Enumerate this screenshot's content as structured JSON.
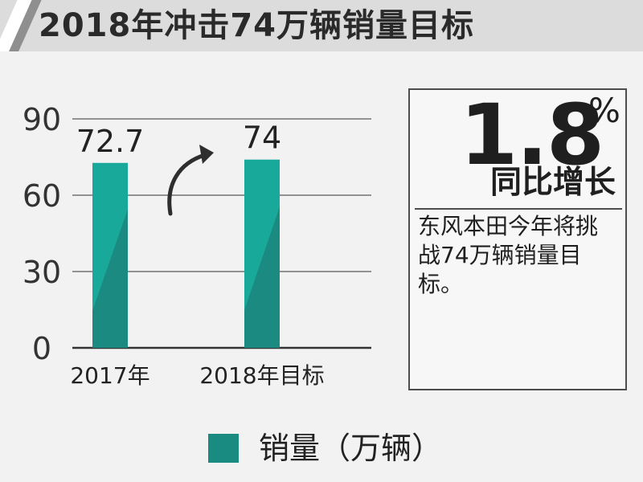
{
  "header": {
    "title": "2018年冲击74万辆销量目标"
  },
  "chart_data": {
    "type": "bar",
    "categories": [
      "2017年",
      "2018年目标"
    ],
    "values": [
      72.7,
      74
    ],
    "data_labels": [
      "72.7",
      "74"
    ],
    "yticks": [
      "0",
      "30",
      "60",
      "90"
    ],
    "ylim": [
      0,
      90
    ],
    "grid": true,
    "legend": {
      "placement": "bottom",
      "label": "销量（万辆）"
    },
    "colors": {
      "bar_main": "#19a99a",
      "bar_shadow": "#1b8a80",
      "axis": "#333333",
      "grid": "#333333",
      "arrow": "#2e2e2e"
    }
  },
  "summary": {
    "growth_value": "1.8",
    "growth_unit": "%",
    "growth_label": "同比增长",
    "description": "东风本田今年将挑战74万辆销量目标。"
  }
}
